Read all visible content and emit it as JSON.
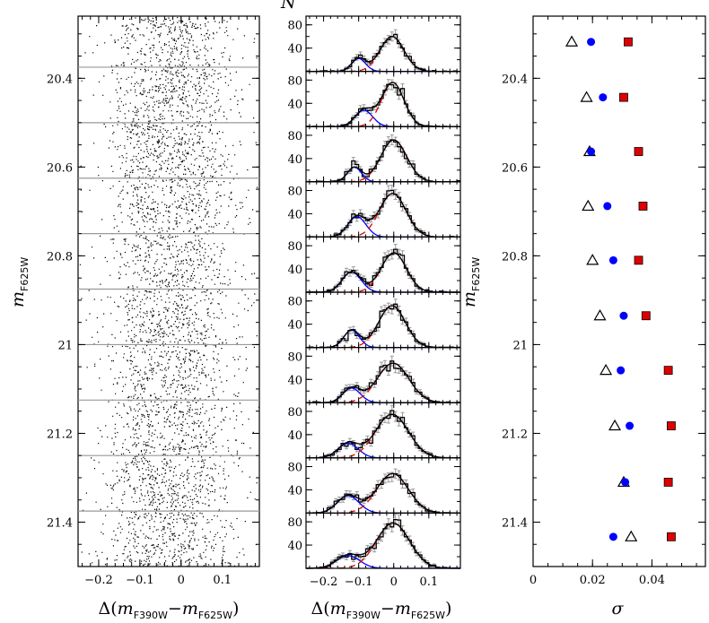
{
  "chart_data": [
    {
      "type": "scatter",
      "name": "cmd",
      "xlabel_parts": [
        "Δ(",
        "m",
        "F390W",
        "−",
        "m",
        "F625W",
        ")"
      ],
      "ylabel_parts": [
        "m",
        "F625W"
      ],
      "xlim": [
        -0.25,
        0.19
      ],
      "ylim": [
        21.5,
        20.26
      ],
      "xticks": [
        -0.2,
        -0.1,
        0,
        0.1
      ],
      "xtick_labels": [
        "−0.2",
        "−0.1",
        "0",
        "0.1"
      ],
      "yticks": [
        20.4,
        20.6,
        20.8,
        21.0,
        21.2,
        21.4
      ],
      "ytick_labels": [
        "20.4",
        "20.6",
        "20.8",
        "21",
        "21.2",
        "21.4"
      ],
      "bin_edges": [
        20.375,
        20.5,
        20.625,
        20.75,
        20.875,
        21.0,
        21.125,
        21.25,
        21.375
      ],
      "bin_line_color": "#999999",
      "point_color": "#000000",
      "approx_point_count": 4000,
      "distribution": "dense vertical sequence centred near 0, spread roughly ±0.15 mag, slight broadening toward fainter magnitudes"
    },
    {
      "type": "histogram",
      "name": "histograms",
      "ylabel": "N",
      "xlabel_parts": [
        "Δ(",
        "m",
        "F390W",
        "−",
        "m",
        "F625W",
        ")"
      ],
      "xlim": [
        -0.25,
        0.19
      ],
      "ylim": [
        0,
        95
      ],
      "xticks": [
        -0.2,
        -0.1,
        0,
        0.1
      ],
      "xtick_labels": [
        "−0.2",
        "−0.1",
        "0",
        "0.1"
      ],
      "yticks": [
        40,
        80
      ],
      "ytick_labels": [
        "40",
        "80"
      ],
      "bin_width": 0.01,
      "colors": {
        "histogram": "#000000",
        "errorbar": "#999999",
        "population_1": "#0000ff",
        "population_2": "#e00000",
        "fit_sum": "#000000"
      },
      "panels": [
        {
          "mag_range": [
            20.26,
            20.375
          ],
          "g1": {
            "amp": 22,
            "mu": -0.1,
            "sigma": 0.02
          },
          "g2": {
            "amp": 60,
            "mu": -0.005,
            "sigma": 0.034
          },
          "peak": 72
        },
        {
          "mag_range": [
            20.375,
            20.5
          ],
          "g1": {
            "amp": 28,
            "mu": -0.085,
            "sigma": 0.025
          },
          "g2": {
            "amp": 76,
            "mu": -0.003,
            "sigma": 0.032
          },
          "peak": 82
        },
        {
          "mag_range": [
            20.5,
            20.625
          ],
          "g1": {
            "amp": 25,
            "mu": -0.112,
            "sigma": 0.02
          },
          "g2": {
            "amp": 72,
            "mu": 0.0,
            "sigma": 0.037
          },
          "peak": 80
        },
        {
          "mag_range": [
            20.625,
            20.75
          ],
          "g1": {
            "amp": 35,
            "mu": -0.105,
            "sigma": 0.026
          },
          "g2": {
            "amp": 75,
            "mu": -0.003,
            "sigma": 0.038
          },
          "peak": 80
        },
        {
          "mag_range": [
            20.75,
            20.875
          ],
          "g1": {
            "amp": 35,
            "mu": -0.12,
            "sigma": 0.027
          },
          "g2": {
            "amp": 68,
            "mu": 0.0,
            "sigma": 0.036
          },
          "peak": 75
        },
        {
          "mag_range": [
            20.875,
            21.0
          ],
          "g1": {
            "amp": 30,
            "mu": -0.12,
            "sigma": 0.022
          },
          "g2": {
            "amp": 72,
            "mu": -0.005,
            "sigma": 0.038
          },
          "peak": 85
        },
        {
          "mag_range": [
            21.0,
            21.125
          ],
          "g1": {
            "amp": 25,
            "mu": -0.12,
            "sigma": 0.025
          },
          "g2": {
            "amp": 68,
            "mu": -0.002,
            "sigma": 0.045
          },
          "peak": 75
        },
        {
          "mag_range": [
            21.125,
            21.25
          ],
          "g1": {
            "amp": 25,
            "mu": -0.13,
            "sigma": 0.029
          },
          "g2": {
            "amp": 75,
            "mu": -0.005,
            "sigma": 0.047
          },
          "peak": 80
        },
        {
          "mag_range": [
            21.25,
            21.375
          ],
          "g1": {
            "amp": 30,
            "mu": -0.13,
            "sigma": 0.031
          },
          "g2": {
            "amp": 68,
            "mu": -0.003,
            "sigma": 0.045
          },
          "peak": 75
        },
        {
          "mag_range": [
            21.375,
            21.5
          ],
          "g1": {
            "amp": 22,
            "mu": -0.13,
            "sigma": 0.033
          },
          "g2": {
            "amp": 78,
            "mu": -0.002,
            "sigma": 0.047
          },
          "peak": 85
        }
      ]
    },
    {
      "type": "scatter",
      "name": "sigma",
      "xlabel": "σ",
      "ylabel_parts": [
        "m",
        "F625W"
      ],
      "xlim": [
        0,
        0.058
      ],
      "ylim": [
        21.5,
        20.26
      ],
      "xticks": [
        0,
        0.02,
        0.04
      ],
      "xtick_labels": [
        "0",
        "0.02",
        "0.04"
      ],
      "yticks": [
        20.4,
        20.6,
        20.8,
        21.0,
        21.2,
        21.4
      ],
      "ytick_labels": [
        "20.4",
        "20.6",
        "20.8",
        "21",
        "21.2",
        "21.4"
      ],
      "series": [
        {
          "marker": "triangle-open",
          "color": "#000000",
          "points": [
            [
              0.013,
              20.318
            ],
            [
              0.018,
              20.443
            ],
            [
              0.019,
              20.565
            ],
            [
              0.0185,
              20.688
            ],
            [
              0.02,
              20.81
            ],
            [
              0.0225,
              20.935
            ],
            [
              0.0245,
              21.058
            ],
            [
              0.0275,
              21.183
            ],
            [
              0.0305,
              21.31
            ],
            [
              0.033,
              21.433
            ]
          ]
        },
        {
          "marker": "circle",
          "color": "#0000ff",
          "points": [
            [
              0.0195,
              20.318
            ],
            [
              0.0235,
              20.443
            ],
            [
              0.0195,
              20.565
            ],
            [
              0.025,
              20.688
            ],
            [
              0.027,
              20.81
            ],
            [
              0.0305,
              20.935
            ],
            [
              0.0295,
              21.058
            ],
            [
              0.0325,
              21.183
            ],
            [
              0.031,
              21.31
            ],
            [
              0.027,
              21.433
            ]
          ]
        },
        {
          "marker": "square",
          "color": "#e00000",
          "points": [
            [
              0.032,
              20.318
            ],
            [
              0.0305,
              20.443
            ],
            [
              0.0355,
              20.565
            ],
            [
              0.037,
              20.688
            ],
            [
              0.0355,
              20.81
            ],
            [
              0.038,
              20.935
            ],
            [
              0.0455,
              21.058
            ],
            [
              0.0465,
              21.183
            ],
            [
              0.0455,
              21.31
            ],
            [
              0.0465,
              21.433
            ]
          ]
        }
      ]
    }
  ]
}
